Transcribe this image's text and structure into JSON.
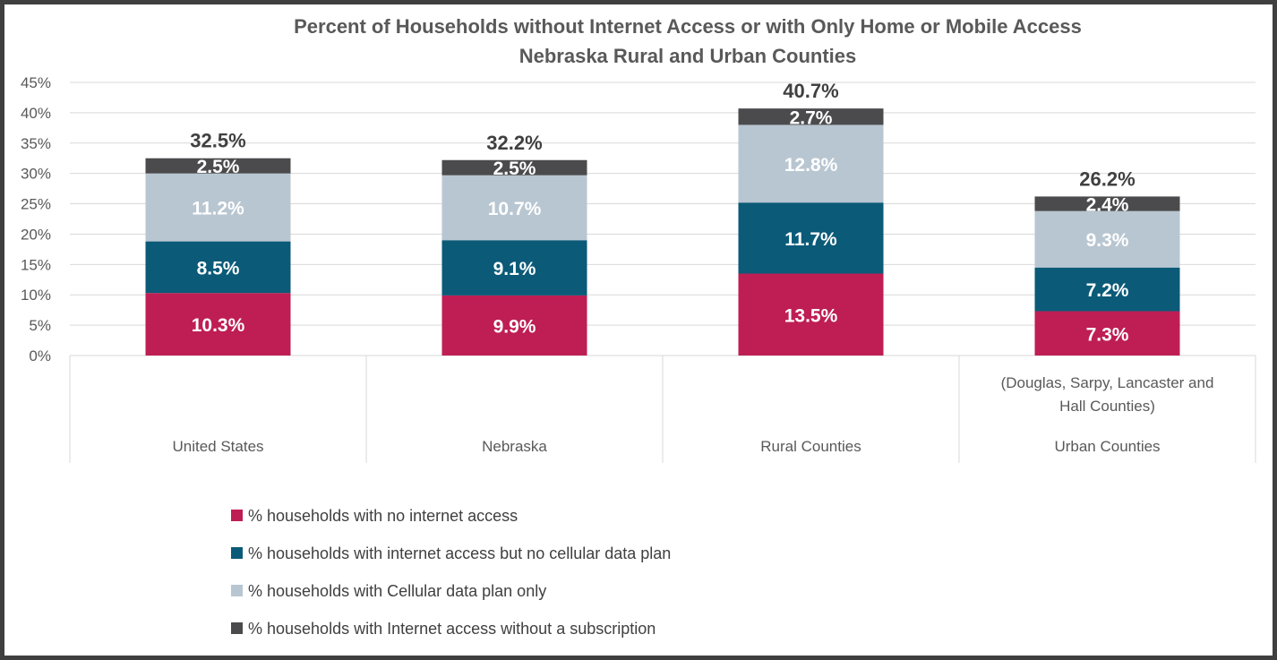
{
  "chart_data": {
    "type": "bar",
    "stacked": true,
    "title": "Percent of Households without Internet Access or with Only Home or Mobile Access",
    "subtitle": "Nebraska Rural and Urban Counties",
    "categories": [
      "United States",
      "Nebraska",
      "Rural Counties",
      "Urban Counties"
    ],
    "category_notes": [
      "",
      "",
      "",
      "(Douglas, Sarpy, Lancaster and Hall Counties)"
    ],
    "series": [
      {
        "name": "% households with no internet access",
        "values": [
          10.3,
          9.9,
          13.5,
          7.3
        ],
        "color": "#be1e54",
        "labels": [
          "10.3%",
          "9.9%",
          "13.5%",
          "7.3%"
        ]
      },
      {
        "name": "% households with internet access but no cellular data plan",
        "values": [
          8.5,
          9.1,
          11.7,
          7.2
        ],
        "color": "#0b5a78",
        "labels": [
          "8.5%",
          "9.1%",
          "11.7%",
          "7.2%"
        ]
      },
      {
        "name": "% households with Cellular data plan only",
        "values": [
          11.2,
          10.7,
          12.8,
          9.3
        ],
        "color": "#b8c6d1",
        "labels": [
          "11.2%",
          "10.7%",
          "12.8%",
          "9.3%"
        ]
      },
      {
        "name": "% households with Internet access without a subscription",
        "values": [
          2.5,
          2.5,
          2.7,
          2.4
        ],
        "color": "#4b4b4d",
        "labels": [
          "2.5%",
          "2.5%",
          "2.7%",
          "2.4%"
        ]
      }
    ],
    "totals": [
      32.5,
      32.2,
      40.7,
      26.2
    ],
    "total_labels": [
      "32.5%",
      "32.2%",
      "40.7%",
      "26.2%"
    ],
    "ylim": [
      0,
      45
    ],
    "yticks": [
      "0%",
      "5%",
      "10%",
      "15%",
      "20%",
      "25%",
      "30%",
      "35%",
      "40%",
      "45%"
    ],
    "xlabel": "",
    "ylabel": "",
    "grid": true,
    "legend_position": "bottom"
  }
}
